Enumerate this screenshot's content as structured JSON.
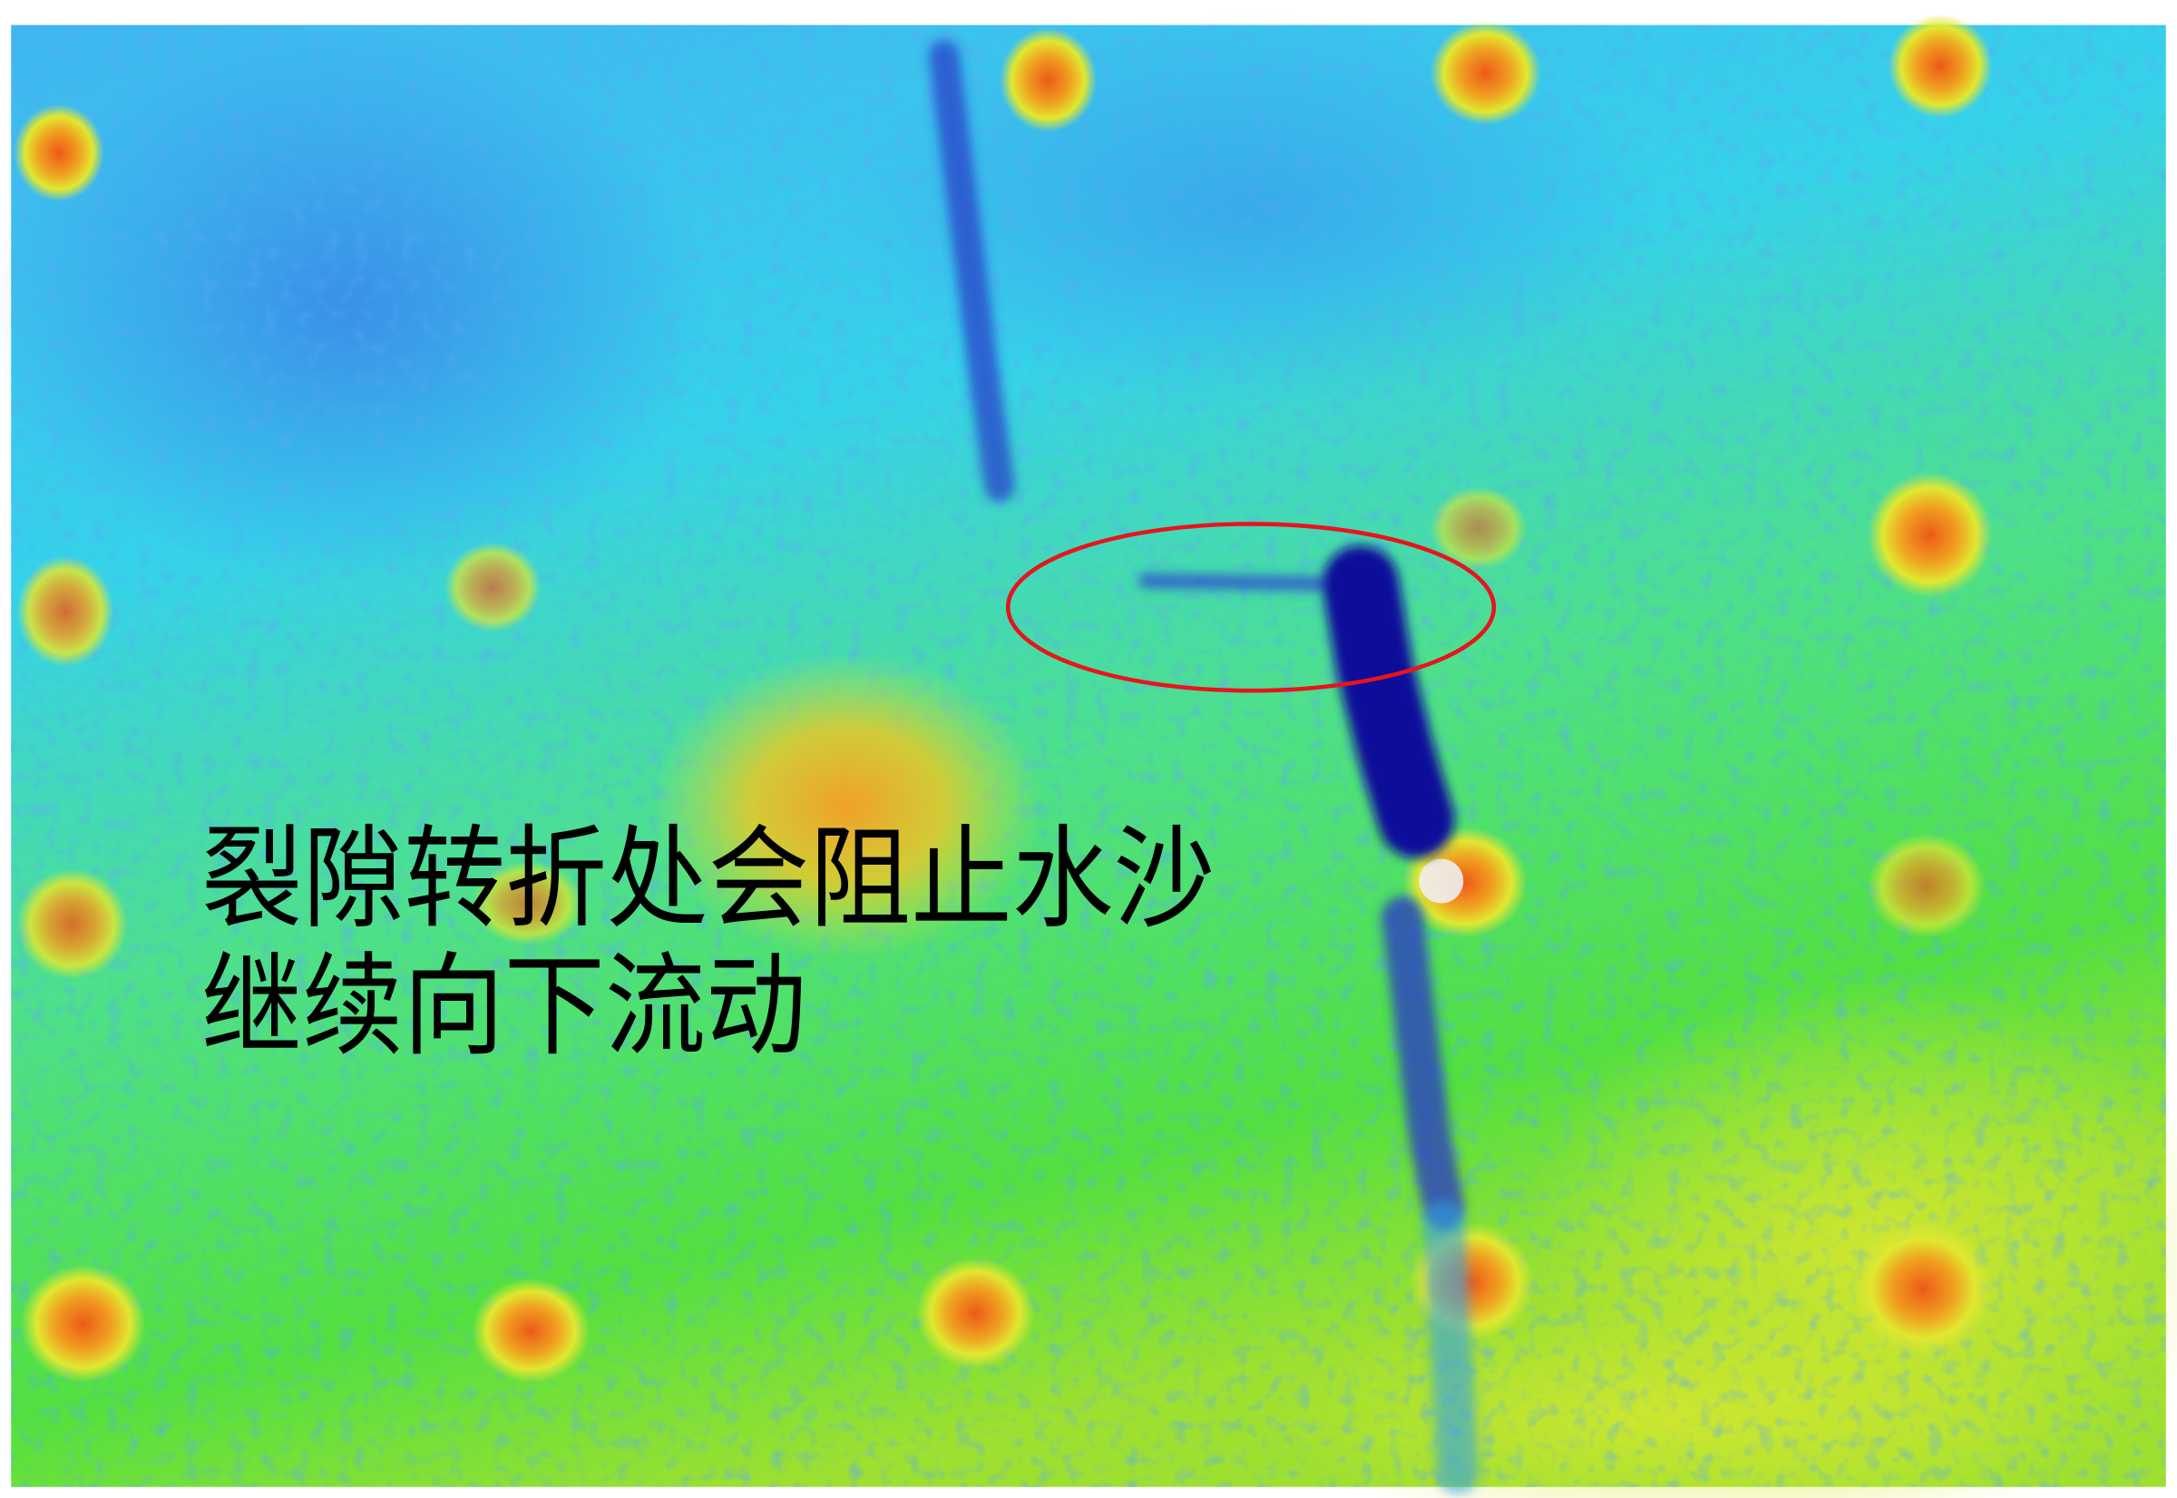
{
  "annotation": {
    "lines": [
      "裂隙转折处会阻止水沙",
      "继续向下流动"
    ],
    "text_color": "#000000",
    "highlight_shape": "ellipse",
    "highlight_color": "#e8141c"
  },
  "image": {
    "type": "false-color intensity map",
    "colormap": [
      "#1a1ab0",
      "#2a8cf0",
      "#20e0e8",
      "#30e040",
      "#e8e820",
      "#f08020",
      "#e82010"
    ]
  }
}
